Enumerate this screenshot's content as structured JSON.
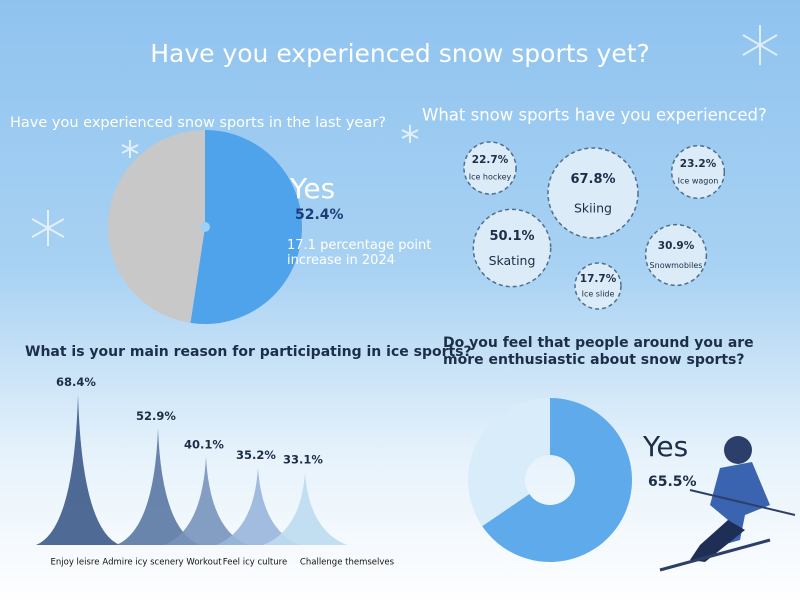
{
  "title": "Have you experienced snow sports yet?",
  "chart_data": [
    {
      "type": "pie",
      "title": "Have you experienced snow sports in the last year?",
      "categories": [
        "Yes",
        null
      ],
      "values": [
        52.4,
        47.6
      ],
      "value_labels": [
        "52.4%",
        null
      ],
      "colors": [
        "#4fa3ea",
        "#c8c8c8"
      ],
      "annotation": "17.1 percentage point increase in 2024"
    },
    {
      "type": "bubble",
      "title": "What snow sports have you experienced?",
      "categories": [
        "Ice hockey",
        "Skiing",
        "Ice wagon",
        "Skating",
        "Snowmobiles",
        "Ice slide"
      ],
      "values": [
        22.7,
        67.8,
        23.2,
        50.1,
        30.9,
        17.7
      ],
      "value_labels": [
        "22.7%",
        "67.8%",
        "23.2%",
        "50.1%",
        "30.9%",
        "17.7%"
      ],
      "color": "#dcebf8"
    },
    {
      "type": "spike",
      "title": "What is your main reason for participating in ice sports?",
      "categories": [
        "Enjoy leisre",
        "Admire icy scenery",
        "Workout",
        "Feel icy culture",
        "Challenge themselves"
      ],
      "values": [
        68.4,
        52.9,
        40.1,
        35.2,
        33.1
      ],
      "value_labels": [
        "68.4%",
        "52.9%",
        "40.1%",
        "35.2%",
        "33.1%"
      ],
      "colors": [
        "#3d5a8a",
        "#5a78a3",
        "#7893bd",
        "#98b5da",
        "#bcdcf1"
      ]
    },
    {
      "type": "donut",
      "title": "Do you feel that people around you are more enthusiastic about snow sports?",
      "categories": [
        "Yes",
        null
      ],
      "values": [
        65.5,
        34.5
      ],
      "value_labels": [
        "65.5%",
        null
      ],
      "colors": [
        "#5eaaea",
        "#d8ecfa"
      ]
    }
  ]
}
